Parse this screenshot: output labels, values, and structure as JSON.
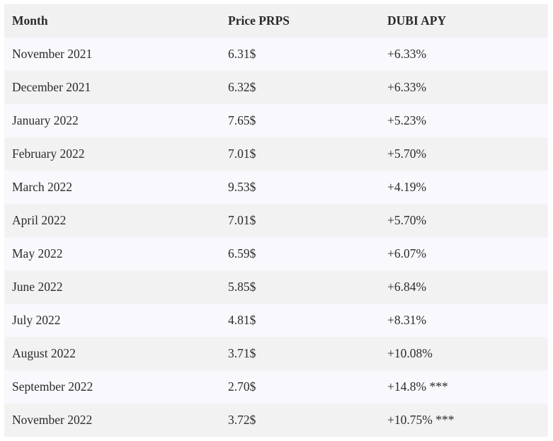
{
  "table": {
    "header": [
      "Month",
      "Price PRPS",
      "DUBI APY"
    ],
    "rows": [
      [
        "November 2021",
        "6.31$",
        "+6.33%"
      ],
      [
        "December 2021",
        "6.32$",
        "+6.33%"
      ],
      [
        "January 2022",
        "7.65$",
        "+5.23%"
      ],
      [
        "February 2022",
        "7.01$",
        "+5.70%"
      ],
      [
        "March 2022",
        "9.53$",
        "+4.19%"
      ],
      [
        "April 2022",
        "7.01$",
        "+5.70%"
      ],
      [
        "May 2022",
        "6.59$",
        "+6.07%"
      ],
      [
        "June 2022",
        "5.85$",
        "+6.84%"
      ],
      [
        "July 2022",
        "4.81$",
        "+8.31%"
      ],
      [
        "August 2022",
        "3.71$",
        "+10.08%"
      ],
      [
        "September 2022",
        "2.70$",
        "+14.8% ***"
      ],
      [
        "November 2022",
        "3.72$",
        "+10.75% ***"
      ]
    ]
  }
}
